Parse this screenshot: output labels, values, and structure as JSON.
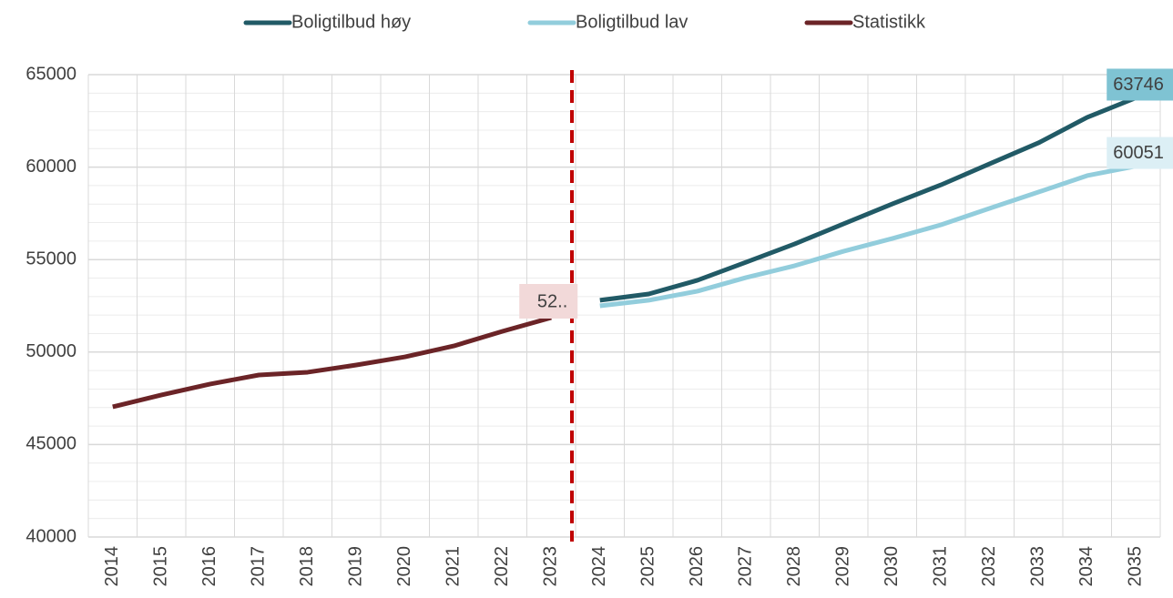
{
  "chart_data": {
    "type": "line",
    "categories": [
      "2014",
      "2015",
      "2016",
      "2017",
      "2018",
      "2019",
      "2020",
      "2021",
      "2022",
      "2023",
      "2024",
      "2025",
      "2026",
      "2027",
      "2028",
      "2029",
      "2030",
      "2031",
      "2032",
      "2033",
      "2034",
      "2035"
    ],
    "series": [
      {
        "name": "Boligtilbud høy",
        "color": "#215a66",
        "values": [
          null,
          null,
          null,
          null,
          null,
          null,
          null,
          null,
          null,
          null,
          52800,
          53140,
          53880,
          54860,
          55850,
          56930,
          58010,
          59040,
          60180,
          61310,
          62690,
          63746
        ],
        "value_labels": [
          null,
          null,
          null,
          null,
          null,
          null,
          null,
          null,
          null,
          null,
          null,
          null,
          null,
          null,
          null,
          null,
          null,
          null,
          null,
          null,
          null,
          "63746"
        ]
      },
      {
        "name": "Boligtilbud lav",
        "color": "#92cddc",
        "values": [
          null,
          null,
          null,
          null,
          null,
          null,
          null,
          null,
          null,
          null,
          52500,
          52800,
          53290,
          54030,
          54670,
          55450,
          56140,
          56880,
          57770,
          58650,
          59540,
          60051
        ],
        "value_labels": [
          null,
          null,
          null,
          null,
          null,
          null,
          null,
          null,
          null,
          null,
          null,
          null,
          null,
          null,
          null,
          null,
          null,
          null,
          null,
          null,
          null,
          "60051"
        ]
      },
      {
        "name": "Statistikk",
        "color": "#6b2427",
        "values": [
          47040,
          47680,
          48270,
          48760,
          48910,
          49300,
          49740,
          50330,
          51120,
          51860,
          null,
          null,
          null,
          null,
          null,
          null,
          null,
          null,
          null,
          null,
          null,
          null
        ],
        "value_labels": [
          null,
          null,
          null,
          null,
          null,
          null,
          null,
          null,
          null,
          "52..",
          null,
          null,
          null,
          null,
          null,
          null,
          null,
          null,
          null,
          null,
          null,
          null
        ]
      }
    ],
    "ylim": [
      40000,
      65000
    ],
    "yticks": [
      40000,
      45000,
      50000,
      55000,
      60000,
      65000
    ],
    "grid": true,
    "legend": "top"
  }
}
